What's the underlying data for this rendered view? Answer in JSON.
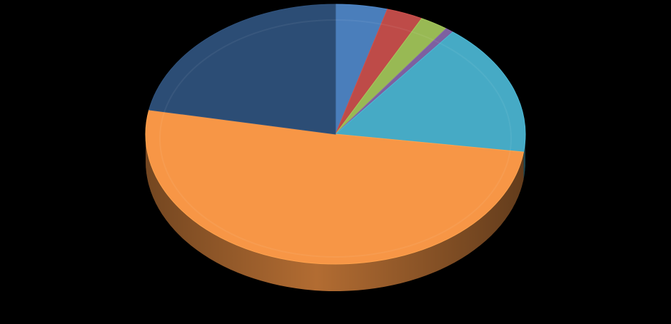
{
  "chart_data": {
    "type": "pie",
    "style": "3d",
    "legend": "none",
    "title": "",
    "slices": [
      {
        "value": 4.4,
        "color": "#4A7EBB"
      },
      {
        "value": 3.1,
        "color": "#BE4B48"
      },
      {
        "value": 2.4,
        "color": "#98B954"
      },
      {
        "value": 0.7,
        "color": "#7D60A0"
      },
      {
        "value": 16.6,
        "color": "#46AAC5"
      },
      {
        "value": 50.8,
        "color": "#F79646"
      },
      {
        "value": 22.0,
        "color": "#2C4D75"
      }
    ]
  }
}
